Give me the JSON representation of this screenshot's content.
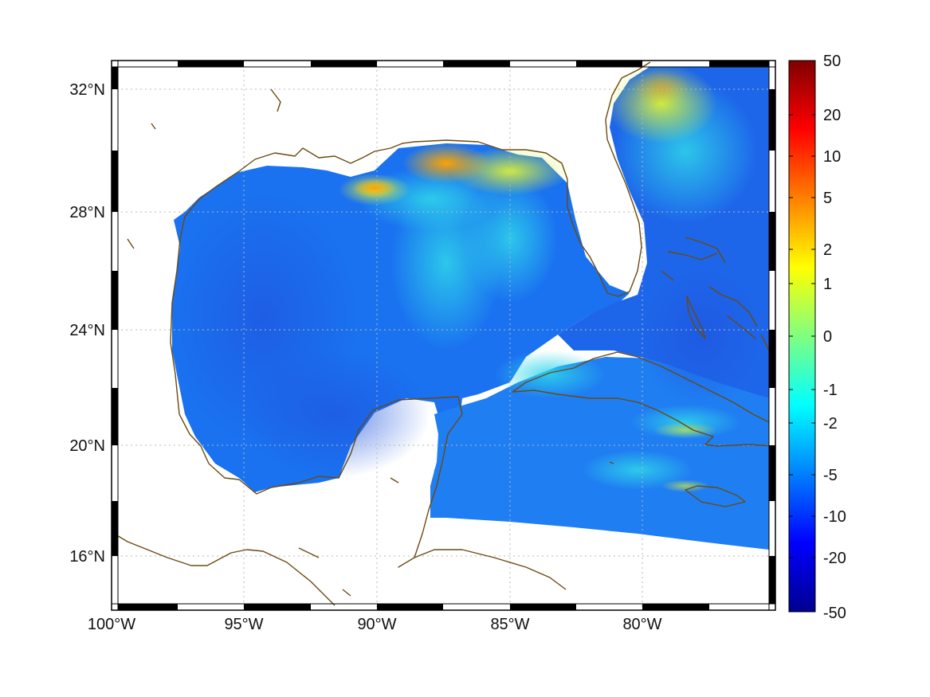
{
  "map": {
    "projection": "Mercator",
    "extent": {
      "lon": [
        -100,
        -75
      ],
      "lat": [
        14,
        33
      ]
    },
    "lat_labels": [
      "32°N",
      "28°N",
      "24°N",
      "20°N",
      "16°N"
    ],
    "lon_labels": [
      "100°W",
      "95°W",
      "90°W",
      "85°W",
      "80°W"
    ],
    "lat_values": [
      32,
      28,
      24,
      20,
      16
    ],
    "lon_values": [
      -100,
      -95,
      -90,
      -85,
      -80
    ],
    "grid": "on (dotted)",
    "frame": "black-and-white checkered border",
    "coastline_color": "#6b4a12",
    "region": "Gulf of Mexico, Caribbean and western Atlantic",
    "field_note": "mostly blue (-5 to -10) over the basin; green-yellow-orange (1 to 5) along the northern Gulf coast off Mississippi/Alabama; cyan-green near the Georgia coast; data masked over land and south of ~17°N"
  },
  "colorbar": {
    "placement": "right",
    "colormap": "jet",
    "tick_labels": [
      "50",
      "20",
      "10",
      "5",
      "2",
      "1",
      "0",
      "-1",
      "-2",
      "-5",
      "-10",
      "-20",
      "-50"
    ],
    "colors": [
      "#00008f",
      "#0000ff",
      "#0080ff",
      "#00ffff",
      "#80ff80",
      "#ffff00",
      "#ff8000",
      "#ff0000",
      "#800000"
    ]
  }
}
